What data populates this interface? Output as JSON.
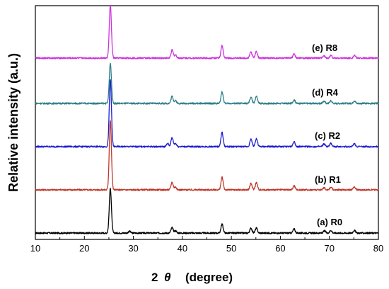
{
  "chart_data": {
    "type": "line",
    "title": "",
    "xlabel_main": "2",
    "xlabel_theta": "θ",
    "xlabel_unit": "(degree)",
    "ylabel": "Relative intensity (a.u.)",
    "xlim": [
      10,
      80
    ],
    "xticks": [
      10,
      20,
      30,
      40,
      50,
      60,
      70,
      80
    ],
    "tick_labels": [
      "10",
      "20",
      "30",
      "40",
      "50",
      "60",
      "70",
      "80"
    ],
    "y_units": "arbitrary (stacked)",
    "grid": false,
    "legend": "none (labels next to curves)",
    "series": [
      {
        "name": "(a) R0",
        "color": "#000000",
        "baseline": 0.0,
        "peaks": [
          [
            25.3,
            1.0
          ],
          [
            37.9,
            0.12
          ],
          [
            48.1,
            0.2
          ],
          [
            54.0,
            0.11
          ],
          [
            55.1,
            0.11
          ],
          [
            62.8,
            0.09
          ],
          [
            69.0,
            0.05
          ],
          [
            70.3,
            0.06
          ],
          [
            75.1,
            0.06
          ],
          [
            29.2,
            0.04
          ],
          [
            38.6,
            0.05
          ]
        ]
      },
      {
        "name": "(b) R1",
        "color": "#c0392b",
        "baseline": 1.0,
        "peaks": [
          [
            25.3,
            1.55
          ],
          [
            37.9,
            0.17
          ],
          [
            48.1,
            0.28
          ],
          [
            54.0,
            0.14
          ],
          [
            55.1,
            0.16
          ],
          [
            62.8,
            0.09
          ],
          [
            68.9,
            0.05
          ],
          [
            70.3,
            0.06
          ],
          [
            75.1,
            0.07
          ],
          [
            38.6,
            0.06
          ]
        ]
      },
      {
        "name": "(c) R2",
        "color": "#1f1fd1",
        "baseline": 2.0,
        "peaks": [
          [
            25.3,
            1.5
          ],
          [
            37.0,
            0.07
          ],
          [
            37.9,
            0.2
          ],
          [
            48.1,
            0.32
          ],
          [
            54.0,
            0.17
          ],
          [
            55.1,
            0.18
          ],
          [
            62.8,
            0.11
          ],
          [
            68.9,
            0.06
          ],
          [
            70.3,
            0.07
          ],
          [
            75.1,
            0.07
          ],
          [
            38.6,
            0.07
          ]
        ]
      },
      {
        "name": "(d) R4",
        "color": "#2c7f88",
        "baseline": 3.0,
        "peaks": [
          [
            25.3,
            0.9
          ],
          [
            37.9,
            0.16
          ],
          [
            48.1,
            0.26
          ],
          [
            54.0,
            0.14
          ],
          [
            55.1,
            0.16
          ],
          [
            62.8,
            0.08
          ],
          [
            68.9,
            0.05
          ],
          [
            70.3,
            0.06
          ],
          [
            75.1,
            0.06
          ],
          [
            38.6,
            0.06
          ]
        ]
      },
      {
        "name": "(e) R8",
        "color": "#cc33dd",
        "baseline": 4.0,
        "peaks": [
          [
            25.3,
            1.18
          ],
          [
            37.9,
            0.18
          ],
          [
            48.1,
            0.28
          ],
          [
            54.0,
            0.14
          ],
          [
            55.1,
            0.15
          ],
          [
            62.8,
            0.09
          ],
          [
            68.9,
            0.05
          ],
          [
            70.3,
            0.06
          ],
          [
            75.1,
            0.06
          ],
          [
            38.6,
            0.07
          ]
        ]
      }
    ]
  }
}
